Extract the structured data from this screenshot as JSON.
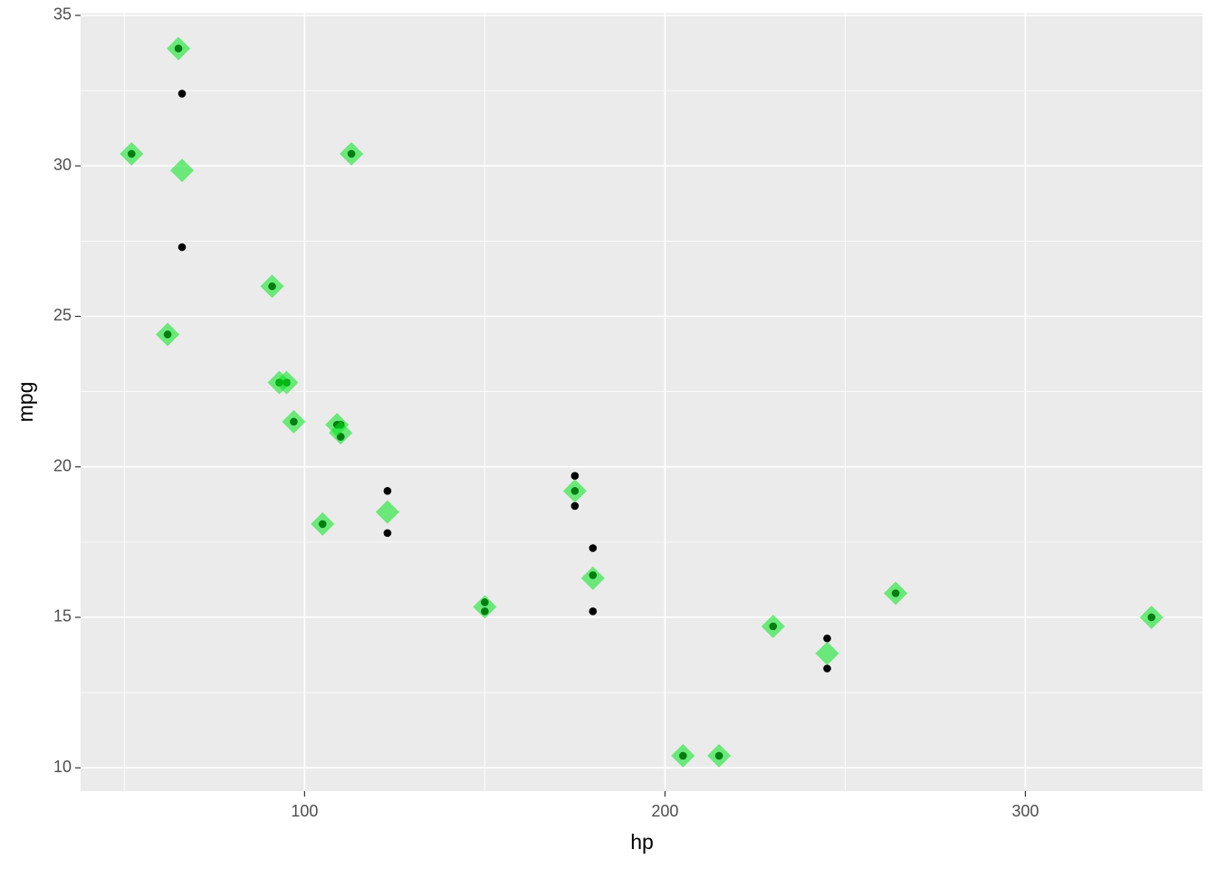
{
  "chart_data": {
    "type": "scatter",
    "x_label": "hp",
    "y_label": "mpg",
    "xlim": [
      37.85,
      349.15
    ],
    "ylim": [
      9.225,
      35.075
    ],
    "xticks": [
      100,
      200,
      300
    ],
    "yticks": [
      10,
      15,
      20,
      25,
      30,
      35
    ],
    "x_minor_ticks": [
      50,
      150,
      250
    ],
    "y_minor_ticks": [
      12.5,
      17.5,
      22.5,
      27.5,
      32.5
    ],
    "grid": true,
    "background": "#ebebeb",
    "grid_color": "#ffffff",
    "series": [
      {
        "marker": "circle",
        "color": "#000000",
        "opacity": 1,
        "x": [
          110,
          110,
          93,
          110,
          175,
          105,
          245,
          62,
          95,
          123,
          123,
          180,
          180,
          180,
          205,
          215,
          230,
          66,
          52,
          65,
          97,
          150,
          150,
          245,
          175,
          66,
          91,
          113,
          264,
          175,
          335,
          109
        ],
        "values": [
          21.0,
          21.0,
          22.8,
          21.4,
          18.7,
          18.1,
          14.3,
          24.4,
          22.8,
          19.2,
          17.8,
          16.4,
          17.3,
          15.2,
          10.4,
          10.4,
          14.7,
          32.4,
          30.4,
          33.9,
          21.5,
          15.5,
          15.2,
          13.3,
          19.2,
          27.3,
          26.0,
          30.4,
          15.8,
          19.7,
          15.0,
          21.4
        ]
      },
      {
        "marker": "diamond",
        "color": "#00e61c",
        "opacity": 0.55,
        "x": [
          52,
          62,
          65,
          66,
          91,
          93,
          95,
          97,
          105,
          109,
          110,
          113,
          123,
          150,
          175,
          180,
          205,
          215,
          230,
          245,
          264,
          335
        ],
        "values": [
          30.4,
          24.4,
          33.9,
          29.85,
          26.0,
          22.8,
          22.8,
          21.5,
          18.1,
          21.4,
          21.13,
          30.4,
          18.5,
          15.35,
          19.2,
          16.3,
          10.4,
          10.4,
          14.7,
          13.8,
          15.8,
          15.0
        ]
      }
    ]
  }
}
